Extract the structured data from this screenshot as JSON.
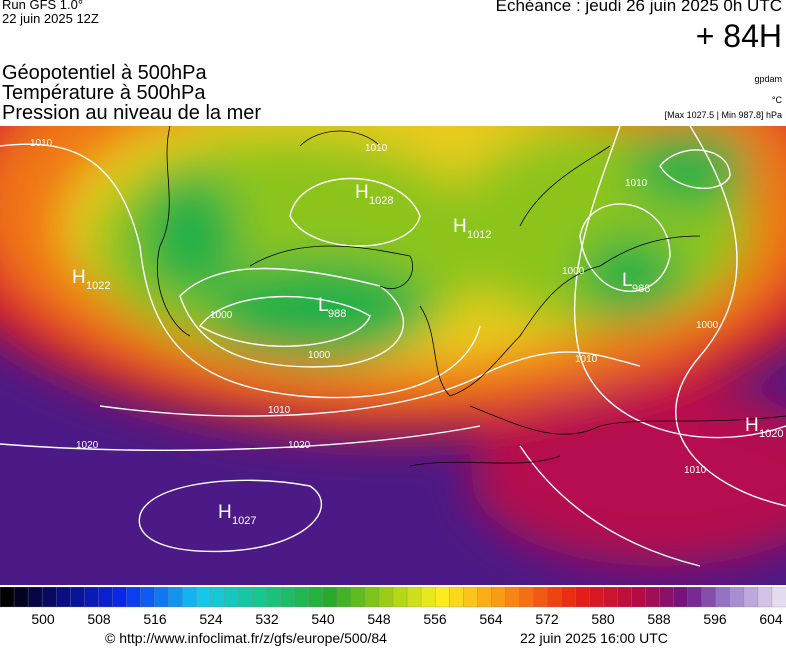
{
  "header": {
    "run": "Run GFS 1.0°",
    "date": "22 juin 2025 12Z",
    "valid": "Echéance : jeudi 26 juin 2025 0h UTC",
    "lead": "+ 84H"
  },
  "titles": [
    "Géopotentiel à 500hPa",
    "Température à 500hPa",
    "Pression au niveau de la mer"
  ],
  "units": {
    "geopotential": "gpdam",
    "temperature": "°C",
    "pressure": "[Max 1027.5 | Min 987.8] hPa"
  },
  "centers": [
    {
      "letter": "H",
      "value": "1028"
    },
    {
      "letter": "H",
      "value": "1012"
    },
    {
      "letter": "L",
      "value": "988"
    },
    {
      "letter": "L",
      "value": "988"
    },
    {
      "letter": "H",
      "value": "1022"
    },
    {
      "letter": "H",
      "value": "1027"
    },
    {
      "letter": "H",
      "value": "1020"
    }
  ],
  "isobar_labels": [
    "1010",
    "1010",
    "1000",
    "1000",
    "1010",
    "1020",
    "1020",
    "1010",
    "1000",
    "1010",
    "1000",
    "1010"
  ],
  "scale_labels": [
    "500",
    "508",
    "516",
    "524",
    "532",
    "540",
    "548",
    "556",
    "564",
    "572",
    "580",
    "588",
    "596",
    "604"
  ],
  "footer": {
    "url": "© http://www.infoclimat.fr/z/gfs/europe/500/84",
    "generated": "22 juin 2025 16:00 UTC"
  }
}
